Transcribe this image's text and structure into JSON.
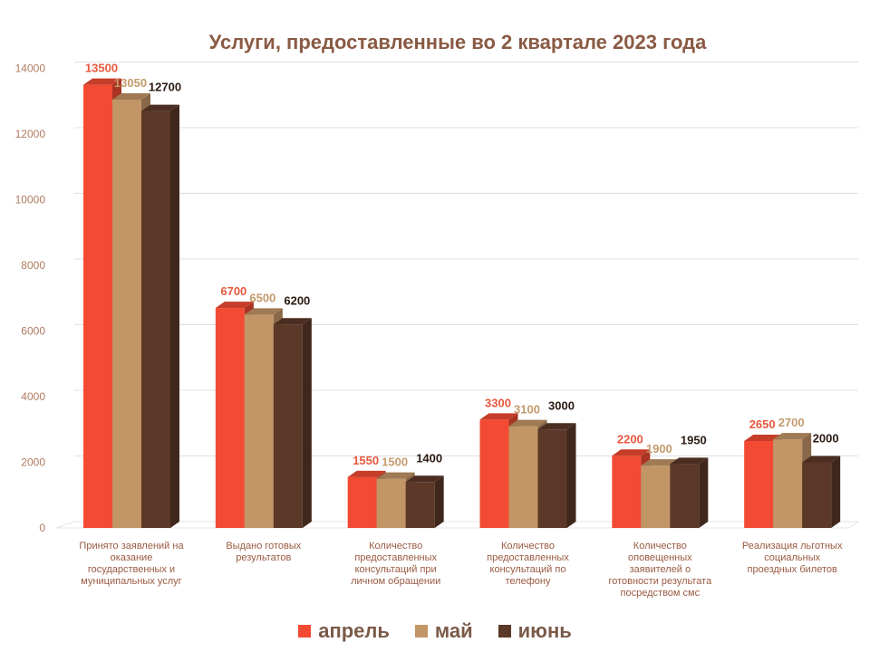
{
  "chart_data": {
    "type": "bar",
    "title": "Услуги, предоставленные во 2 квартале 2023 года",
    "xlabel": "",
    "ylabel": "",
    "ylim": [
      0,
      14000
    ],
    "yticks": [
      0,
      2000,
      4000,
      6000,
      8000,
      10000,
      12000,
      14000
    ],
    "grid": true,
    "legend_position": "bottom",
    "categories": [
      [
        "Принято заявлений на",
        "оказание",
        "государственных и",
        "муниципальных услуг"
      ],
      [
        "Выдано готовых",
        "результатов"
      ],
      [
        "Количество",
        "предоставленных",
        "консультаций  при",
        "личном обращении"
      ],
      [
        "Количество",
        "предоставленных",
        "консультаций   по",
        "телефону"
      ],
      [
        "Количество",
        "оповещенных",
        "заявителей о",
        "готовности результата",
        "посредством смс"
      ],
      [
        "Реализация льготных",
        "социальных",
        "проездных билетов"
      ]
    ],
    "series": [
      {
        "name": "апрель",
        "color": "#f24a33",
        "label_color": "#e8583e",
        "values": [
          13500,
          6700,
          1550,
          3300,
          2200,
          2650
        ]
      },
      {
        "name": "май",
        "color": "#c29567",
        "label_color": "#c49a6c",
        "values": [
          13050,
          6500,
          1500,
          3100,
          1900,
          2700
        ]
      },
      {
        "name": "июнь",
        "color": "#5c3828",
        "label_color": "#2b1a12",
        "values": [
          12700,
          6200,
          1400,
          3000,
          1950,
          2000
        ]
      }
    ]
  }
}
